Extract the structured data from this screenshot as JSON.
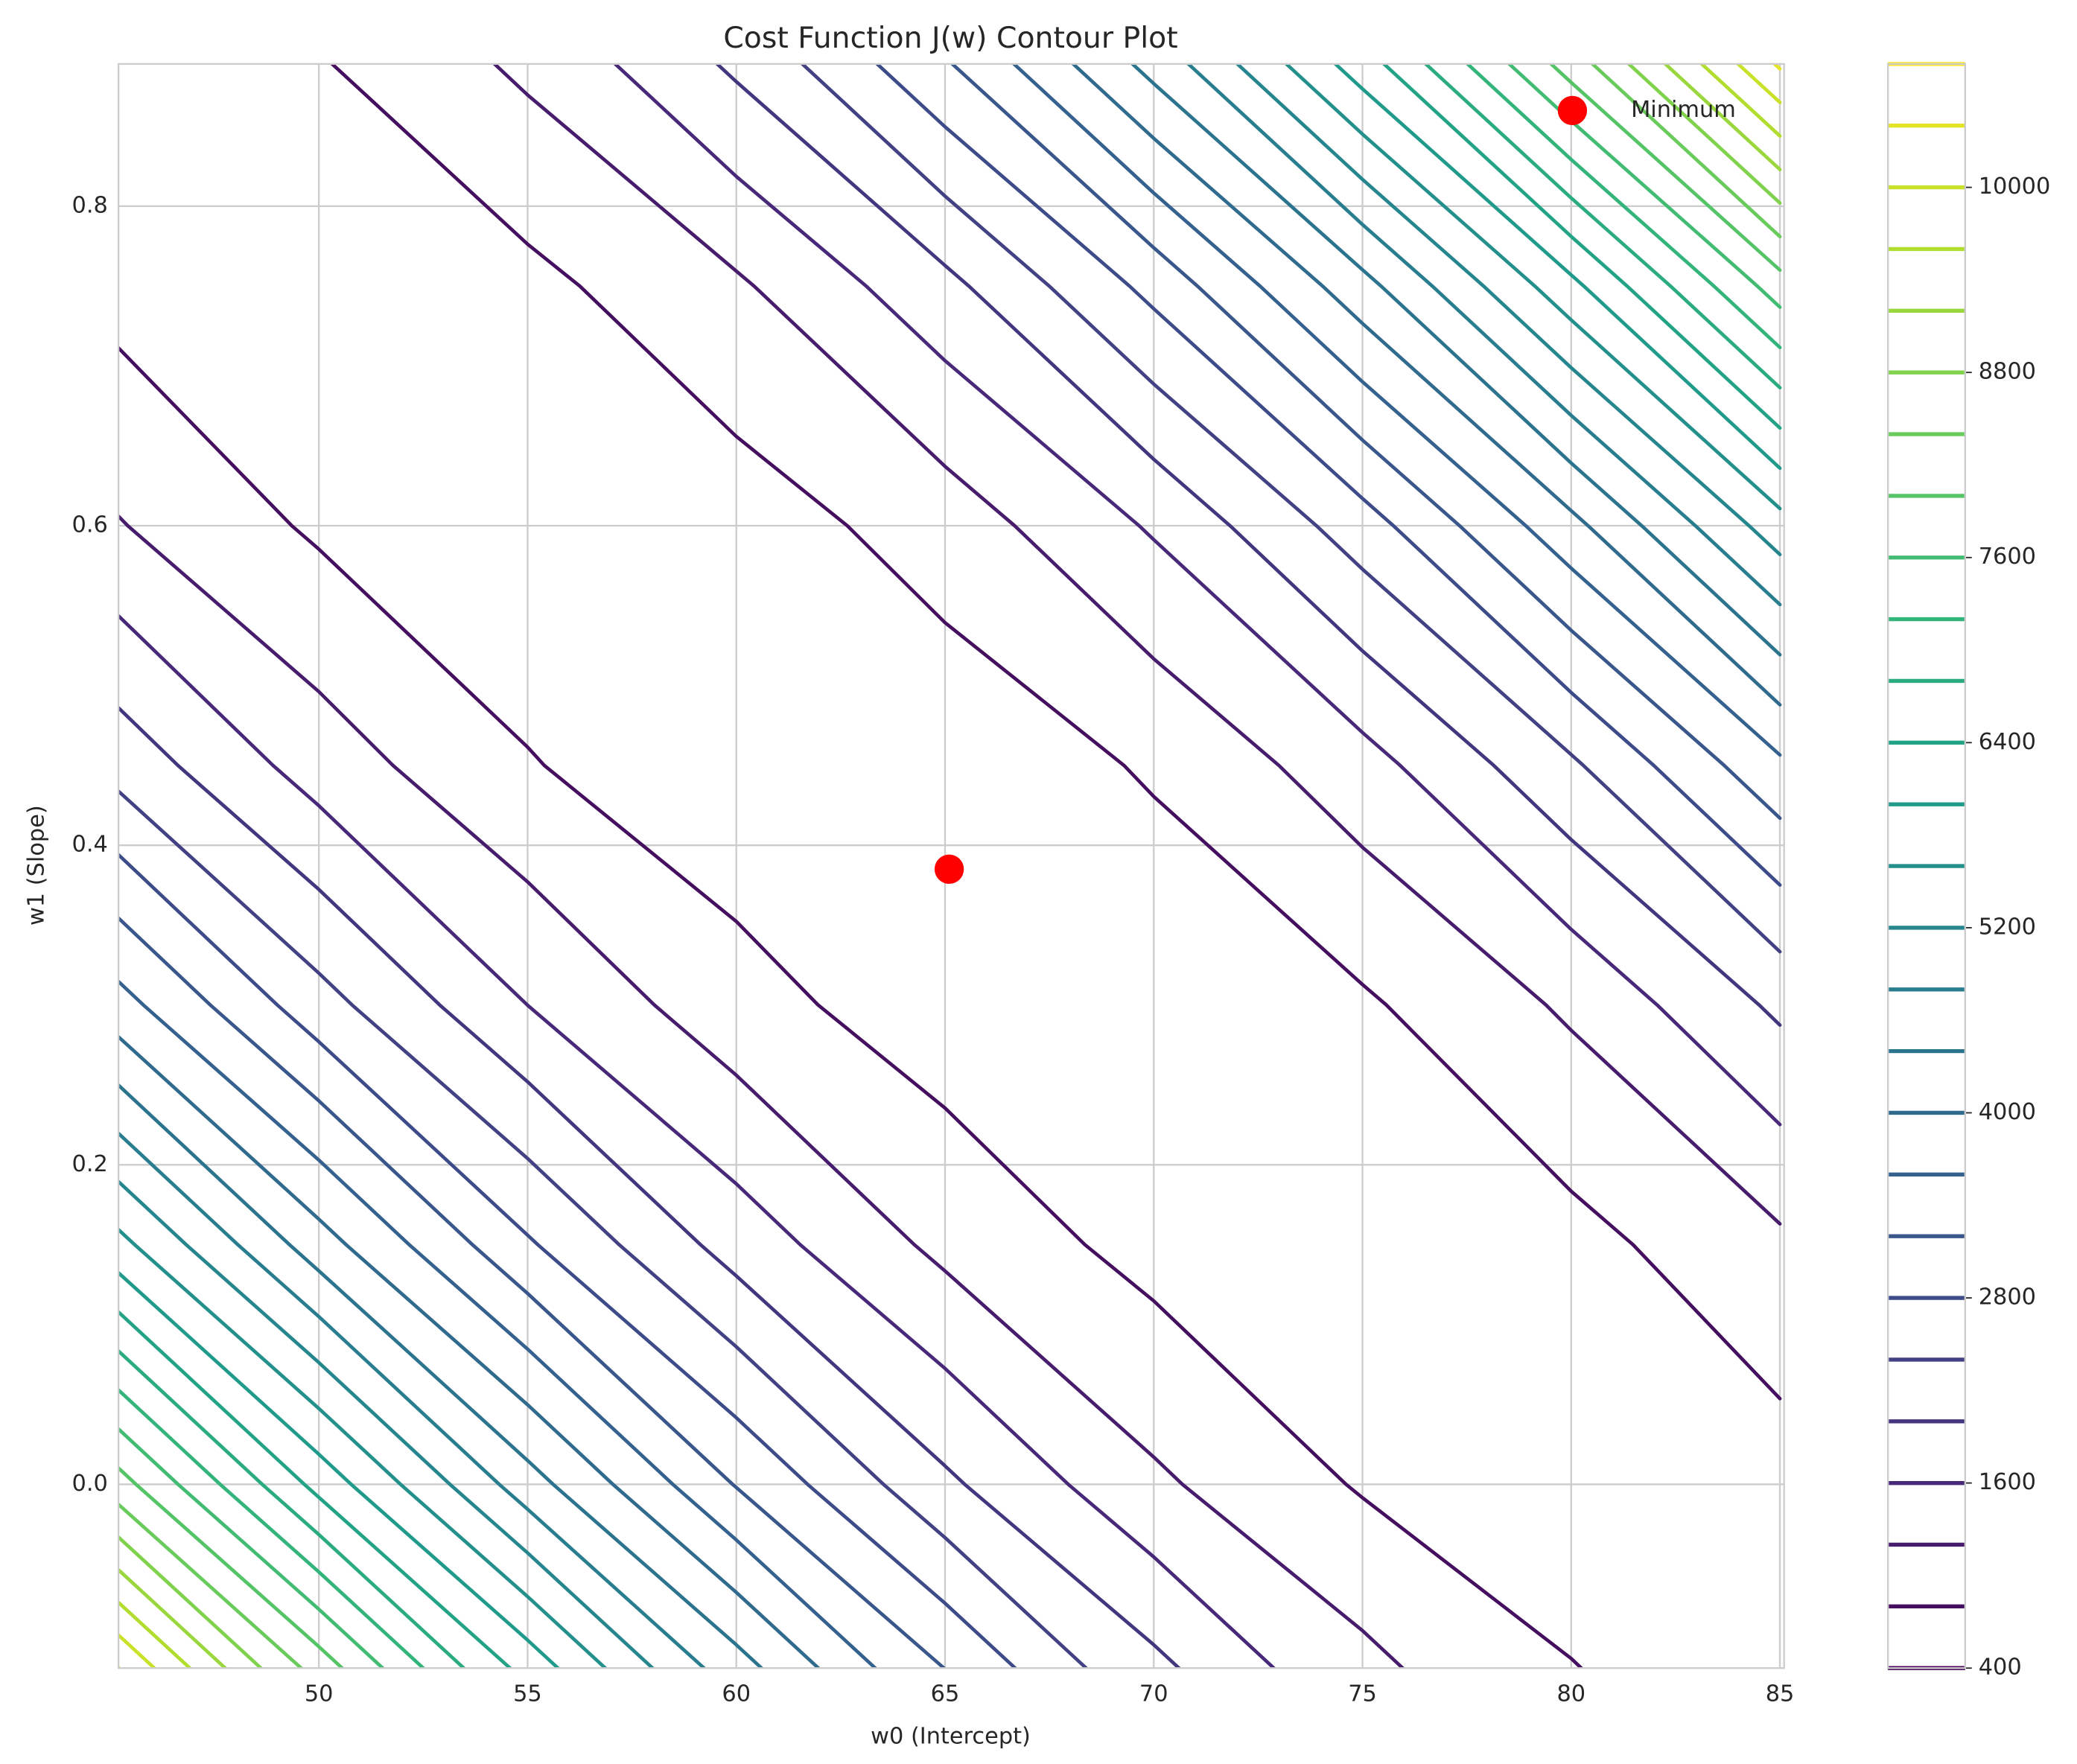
{
  "chart_data": {
    "type": "contour",
    "title": "Cost Function J(w) Contour Plot",
    "xlabel": "w0 (Intercept)",
    "ylabel": "w1 (Slope)",
    "xlim": [
      45.2,
      85.1
    ],
    "ylim": [
      -0.115,
      0.889
    ],
    "xticks": [
      50,
      55,
      60,
      65,
      70,
      75,
      80,
      85
    ],
    "yticks": [
      {
        "value": 0,
        "label": "0.0"
      },
      0.2,
      0.4,
      0.6,
      0.8
    ],
    "grid": true,
    "colormap": "viridis",
    "x": [
      45,
      50,
      55,
      60,
      65,
      70,
      75,
      80,
      85
    ],
    "y": [
      -0.15,
      0,
      0.15,
      0.3,
      0.45,
      0.6,
      0.75,
      0.9
    ],
    "z": [
      [
        11184,
        8829,
        6769,
        5005,
        3535,
        2360,
        1481,
        896,
        606
      ],
      [
        8247,
        6262,
        4571,
        3176,
        2076,
        1270,
        760,
        545,
        624
      ],
      [
        5789,
        4172,
        2850,
        1824,
        1092,
        656,
        514,
        667,
        1116
      ],
      [
        3799,
        2552,
        1599,
        942,
        580,
        513,
        740,
        1263,
        2081
      ],
      [
        2285,
        1407,
        823,
        535,
        541,
        843,
        1439,
        2331,
        3517
      ],
      [
        1243,
        734,
        520,
        600,
        976,
        1647,
        2613,
        3874,
        5430
      ],
      [
        673,
        533,
        688,
        1137,
        1882,
        2921,
        4256,
        5885,
        7810
      ],
      [
        577,
        806,
        1330,
        2149,
        3263,
        4672,
        6376,
        8375,
        10669
      ]
    ],
    "levels": [
      400,
      800,
      1200,
      1600,
      2000,
      2400,
      2800,
      3200,
      3600,
      4000,
      4400,
      4800,
      5200,
      5600,
      6000,
      6400,
      6800,
      7200,
      7600,
      8000,
      8400,
      8800,
      9200,
      9600,
      10000,
      10400,
      10800
    ],
    "clim": [
      400,
      10800
    ],
    "colorbar_ticks": [
      400,
      1600,
      2800,
      4000,
      5200,
      6400,
      7600,
      8800,
      10000
    ],
    "minimum": {
      "name": "Minimum",
      "x": 65.1,
      "y": 0.385,
      "color": "#ff0000"
    },
    "legend": "upper right"
  }
}
